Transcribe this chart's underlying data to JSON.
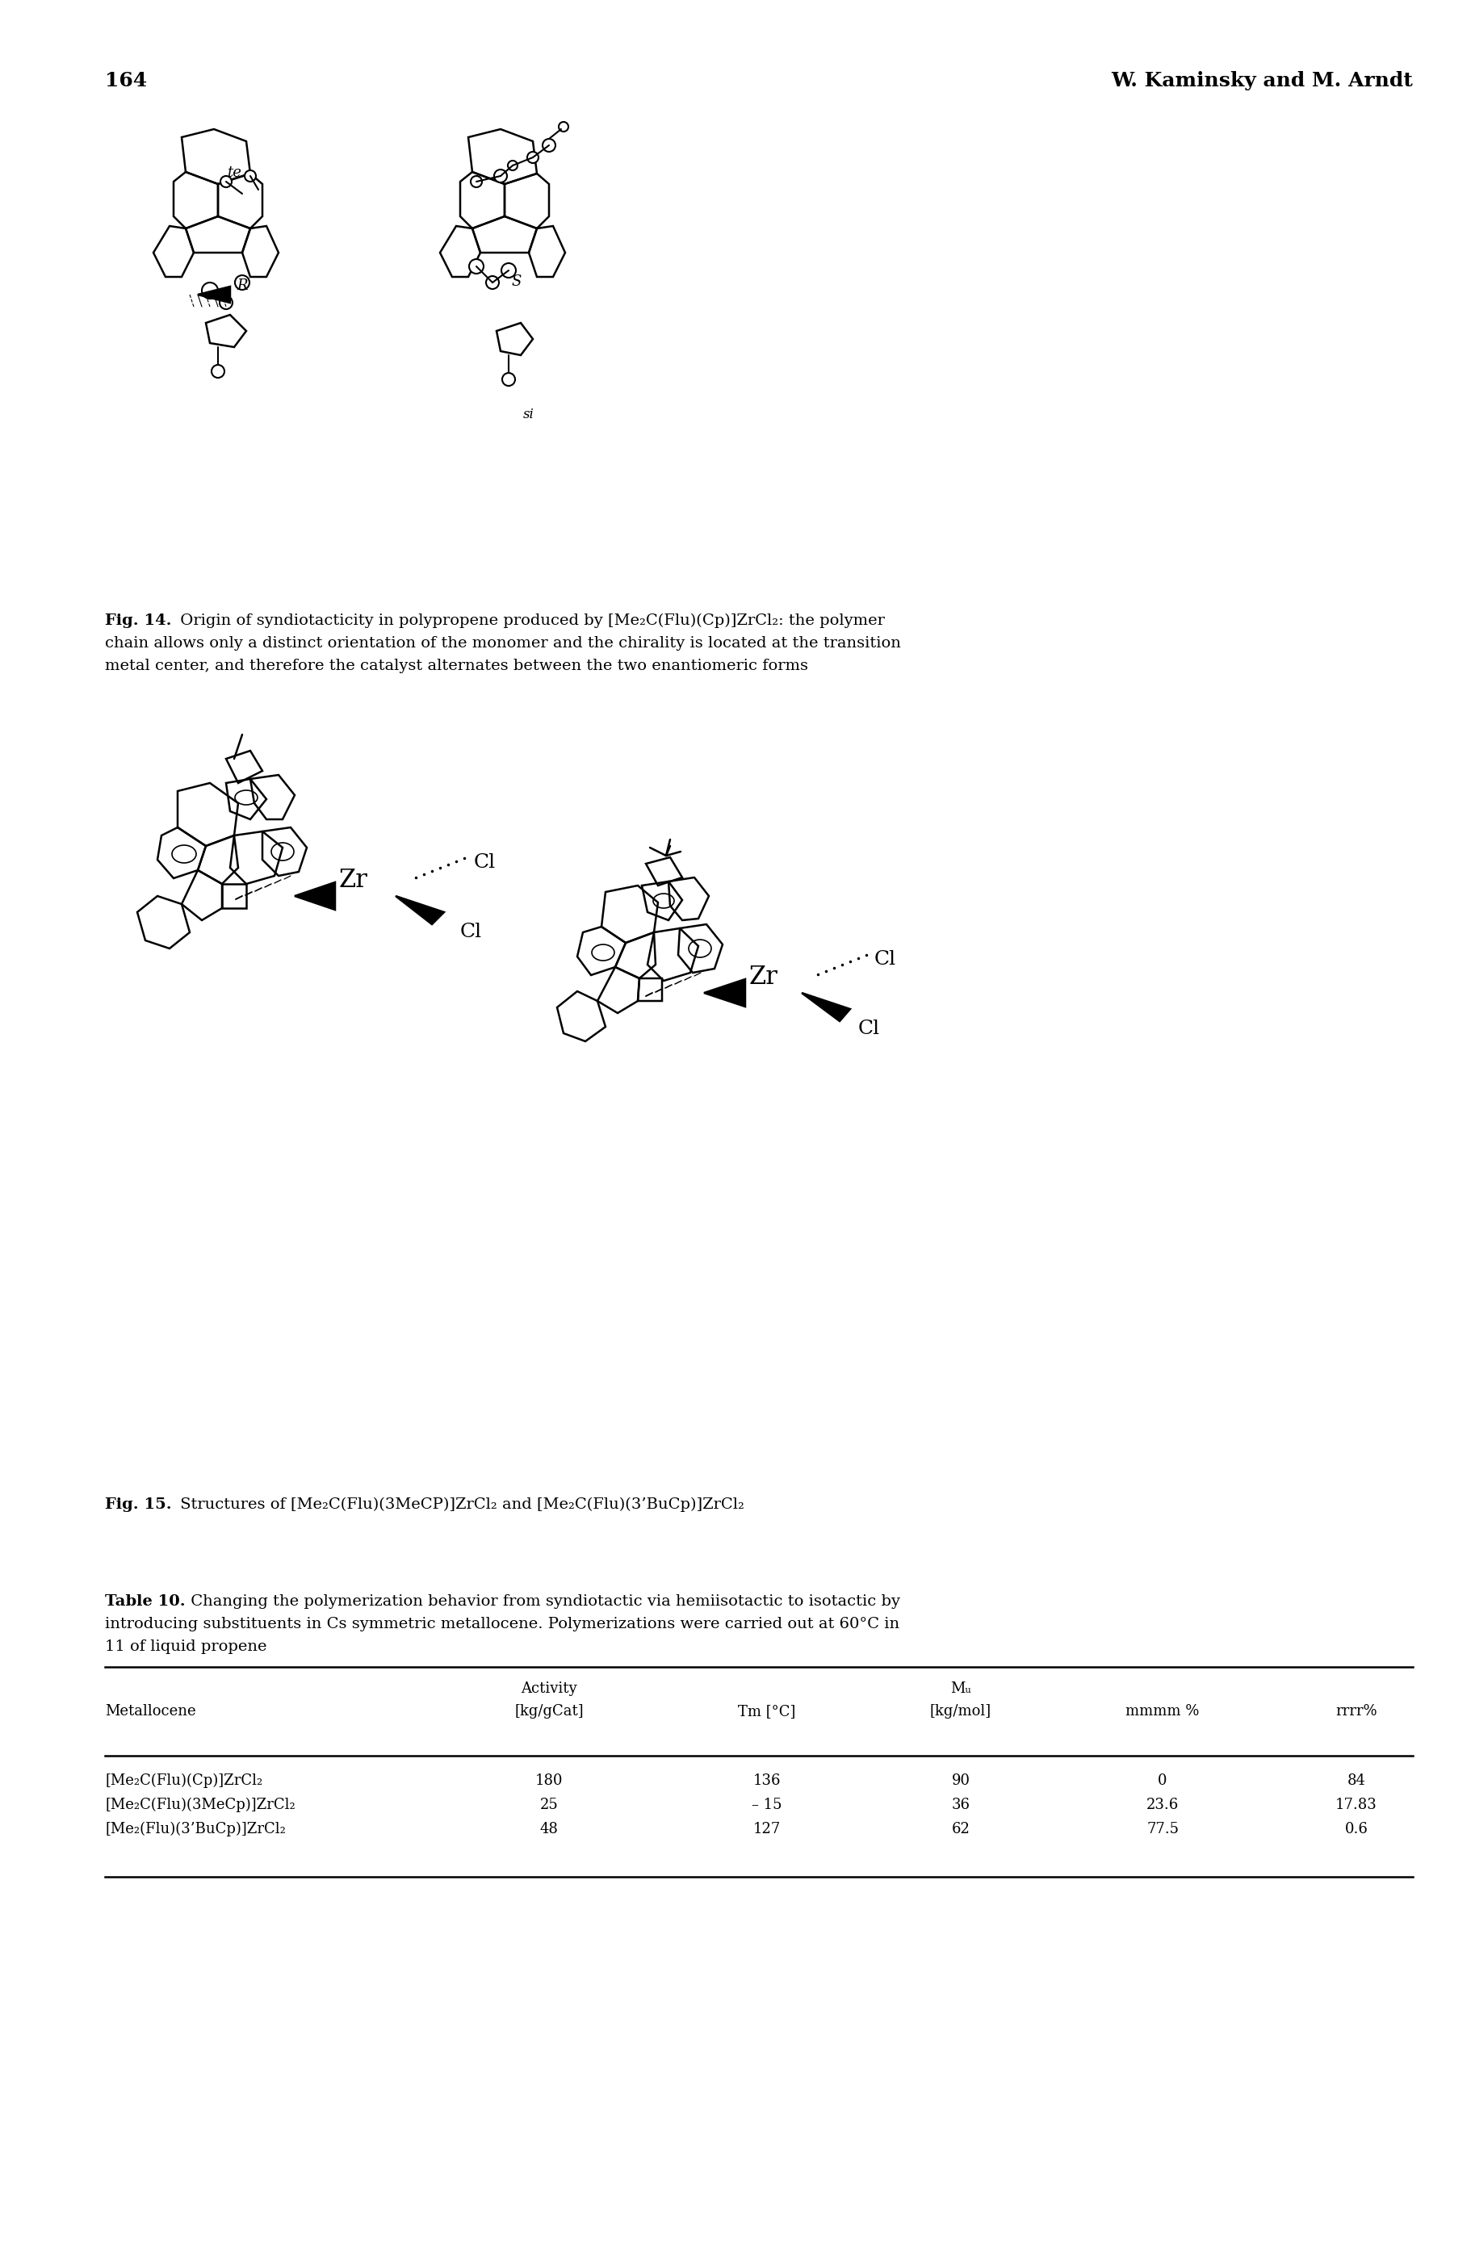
{
  "page_number": "164",
  "header_right": "W. Kaminsky and M. Arndt",
  "fig14_bold": "Fig. 14.",
  "fig14_rest": " Origin of syndiotacticity in polypropene produced by [Me₂C(Flu)(Cp)]ZrCl₂: the polymer",
  "fig14_line2": "chain allows only a distinct orientation of the monomer and the chirality is located at the transition",
  "fig14_line3": "metal center, and therefore the catalyst alternates between the two enantiomeric forms",
  "fig15_bold": "Fig. 15.",
  "fig15_rest": " Structures of [Me₂C(Flu)(3MeCP)]ZrCl₂ and [Me₂C(Flu)(3’BuCp)]ZrCl₂",
  "table_bold": "Table 10.",
  "table_rest": " Changing the polymerization behavior from syndiotactic via hemiisotactic to isotactic by",
  "table_line2": "introducing substituents in Cs symmetric metallocene. Polymerizations were carried out at 60°C in",
  "table_line3": "11 of liquid propene",
  "hdr1a": "Activity",
  "hdr1b": "Mᵤ",
  "hdr2": [
    "Metallocene",
    "[kg/gCat]",
    "Tm [°C]",
    "[kg/mol]",
    "mmmm %",
    "rrrr%"
  ],
  "table_data": [
    [
      "[Me₂C(Flu)(Cp)]ZrCl₂",
      "180",
      "136",
      "90",
      "0",
      "84"
    ],
    [
      "[Me₂C(Flu)(3MeCp)]ZrCl₂",
      "25",
      "– 15",
      "36",
      "23.6",
      "17.83"
    ],
    [
      "[Me₂(Flu)(3’BuCp)]ZrCl₂",
      "48",
      "127",
      "62",
      "77.5",
      "0.6"
    ]
  ],
  "bg": "#ffffff",
  "fg": "#000000",
  "lm": 130,
  "rm": 1750
}
